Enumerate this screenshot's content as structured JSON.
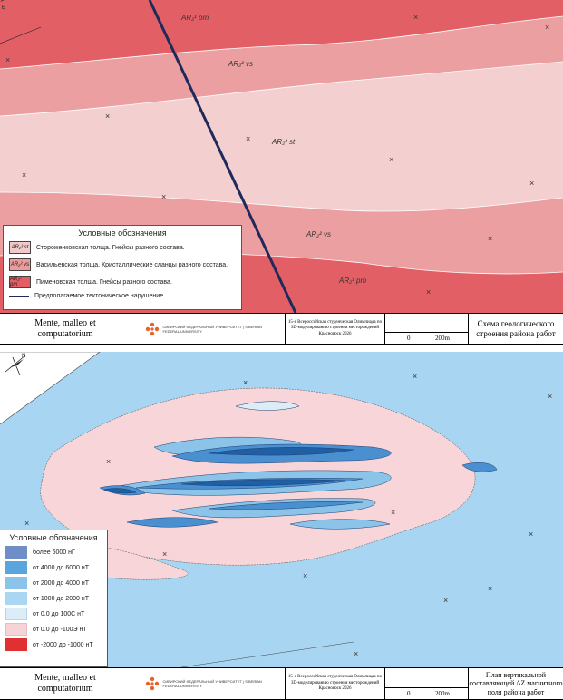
{
  "geology_panel": {
    "units": [
      {
        "label": "AR₂¹ pm"
      },
      {
        "label": "AR₂² vs"
      },
      {
        "label": "AR₂³ st"
      },
      {
        "label": "AR₂² vs"
      },
      {
        "label": "AR₂¹ pm"
      }
    ],
    "legend": {
      "title": "Условные обозначения",
      "items": [
        {
          "symbol": "AR₂³ st",
          "text": "Стороженковская толща. Гнейсы разного состава.",
          "color": "#f2c9c9"
        },
        {
          "symbol": "AR₂² vs",
          "text": "Васильевская толща. Кристаллические сланцы разного состава.",
          "color": "#eb9a9a"
        },
        {
          "symbol": "AR₂¹ pm",
          "text": "Пименовская толща. Гнейсы разного состава.",
          "color": "#e55c62"
        }
      ],
      "fault_text": "Предполагаемое тектоническое нарушение."
    },
    "colors": {
      "st": "#f3cfcf",
      "vs": "#ec9fa0",
      "pm": "#e35f66",
      "fault": "#1f2a5a"
    }
  },
  "magnetic_panel": {
    "legend": {
      "title": "Условные обозначения",
      "items": [
        {
          "text": "более 6000  нГ",
          "color": "#6f8ec7"
        },
        {
          "text": "от 4000 до 6000 нТ",
          "color": "#5aa6dc"
        },
        {
          "text": "от 2000 до 4000 нТ",
          "color": "#8cc3e9"
        },
        {
          "text": "от 1000 до 2000 нТ",
          "color": "#a9d6f2"
        },
        {
          "text": "от 0.0 до 100С нТ",
          "color": "#dcedf8"
        },
        {
          "text": "от 0.0 до -100Э нТ",
          "color": "#f6d3d6"
        },
        {
          "text": "от -2000 до -1000 нТ",
          "color": "#e0302f"
        }
      ]
    },
    "colors": {
      "background": "#a8d6f2",
      "negative": "#f8d5d8",
      "low": "#dcedf8",
      "mid": "#8cc3e9",
      "high": "#4a8fcf",
      "highest": "#1f5fa6"
    }
  },
  "titleblock_top": {
    "motto_line1": "Mente, malleo et",
    "motto_line2": "computatorium",
    "logo_text": "СИБИРСКИЙ ФЕДЕРАЛЬНЫЙ УНИВЕРСИТЕТ | SIBERIAN FEDERAL UNIVERSITY",
    "olympiad": "15-я Всероссийская студенческая Олимпиада по 3D-моделированию строения месторождений Красноярск 2026",
    "scale_left": "0",
    "scale_right": "200m",
    "map_name": "Схема геологического строения района работ"
  },
  "titleblock_bottom": {
    "motto_line1": "Mente, malleo et",
    "motto_line2": "computatorium",
    "logo_text": "СИБИРСКИЙ ФЕДЕРАЛЬНЫЙ УНИВЕРСИТЕТ | SIBERIAN FEDERAL UNIVERSITY",
    "olympiad": "15-я Всероссийская студенческая Олимпиада по 3D-моделированию строения месторождений Красноярск 2026",
    "scale_left": "0",
    "scale_right": "200m",
    "map_name": "План вертикальной составляющей ΔZ магнитного поля района работ"
  }
}
